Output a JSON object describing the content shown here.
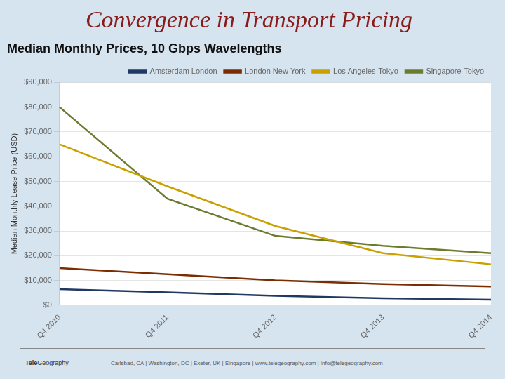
{
  "chart_data": {
    "type": "line",
    "title": "Convergence in Transport Pricing",
    "subtitle": "Median Monthly Prices, 10 Gbps Wavelengths",
    "ylabel": "Median Monthly Lease Price (USD)",
    "categories": [
      "Q4 2010",
      "Q4 2011",
      "Q4 2012",
      "Q4 2013",
      "Q4 2014"
    ],
    "series": [
      {
        "name": "Amsterdam London",
        "color": "#1f3864",
        "values": [
          6500,
          5200,
          3800,
          2800,
          2200
        ]
      },
      {
        "name": "London New York",
        "color": "#7b2d00",
        "values": [
          15000,
          12500,
          10000,
          8500,
          7500
        ]
      },
      {
        "name": "Los Angeles-Tokyo",
        "color": "#c8a000",
        "values": [
          65000,
          48000,
          32000,
          21000,
          16500
        ]
      },
      {
        "name": "Singapore-Tokyo",
        "color": "#6b7c2e",
        "values": [
          80000,
          43000,
          28000,
          24000,
          21000
        ]
      }
    ],
    "ylim": [
      0,
      90000
    ],
    "yticks": [
      {
        "value": 0,
        "label": "$0"
      },
      {
        "value": 10000,
        "label": "$10,000"
      },
      {
        "value": 20000,
        "label": "$20,000"
      },
      {
        "value": 30000,
        "label": "$30,000"
      },
      {
        "value": 40000,
        "label": "$40,000"
      },
      {
        "value": 50000,
        "label": "$50,000"
      },
      {
        "value": 60000,
        "label": "$60,000"
      },
      {
        "value": 70000,
        "label": "$70,000"
      },
      {
        "value": 80000,
        "label": "$80,000"
      },
      {
        "value": 90000,
        "label": "$90,000"
      }
    ],
    "grid": true,
    "legend": "upper right",
    "footer_logo": [
      "Tele",
      "Geography"
    ],
    "footer": "Carlsbad, CA | Washington, DC | Exeter, UK | Singapore | www.telegeography.com | Info@telegeography.com"
  }
}
